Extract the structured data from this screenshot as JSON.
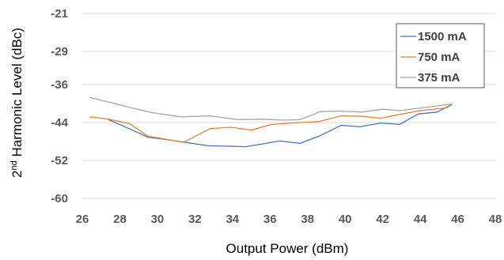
{
  "chart_data": {
    "type": "line",
    "title": "",
    "xlabel": "Output Power (dBm)",
    "ylabel_main": "2",
    "ylabel_sup": "nd",
    "ylabel_rest": " Harmonic Level (dBc)",
    "xlim": [
      26,
      48
    ],
    "ylim": [
      -60,
      -21
    ],
    "xticks": [
      26,
      28,
      30,
      32,
      34,
      36,
      38,
      40,
      42,
      44,
      46,
      48
    ],
    "yticks": [
      -21,
      -29,
      -36,
      -44,
      -52,
      -60
    ],
    "grid": "horizontal",
    "legend_position": "top-right",
    "series": [
      {
        "name": "1500 mA",
        "color": "#4472c4",
        "points": [
          [
            27.4,
            -43.4
          ],
          [
            28.5,
            -45.3
          ],
          [
            29.5,
            -47.1
          ],
          [
            30.5,
            -47.6
          ],
          [
            31.5,
            -48.2
          ],
          [
            32.7,
            -48.9
          ],
          [
            33.8,
            -49.0
          ],
          [
            34.7,
            -49.1
          ],
          [
            35.8,
            -48.4
          ],
          [
            36.5,
            -47.9
          ],
          [
            37.6,
            -48.4
          ],
          [
            38.6,
            -46.9
          ],
          [
            39.8,
            -44.6
          ],
          [
            40.8,
            -44.9
          ],
          [
            41.9,
            -44.1
          ],
          [
            42.9,
            -44.4
          ],
          [
            43.9,
            -42.2
          ],
          [
            44.9,
            -41.8
          ],
          [
            45.7,
            -40.2
          ]
        ]
      },
      {
        "name": "750 mA",
        "color": "#ed7d31",
        "points": [
          [
            26.4,
            -42.8
          ],
          [
            27.4,
            -43.3
          ],
          [
            28.5,
            -44.2
          ],
          [
            29.5,
            -46.9
          ],
          [
            30.6,
            -47.6
          ],
          [
            31.4,
            -48.2
          ],
          [
            32.8,
            -45.3
          ],
          [
            33.9,
            -45.0
          ],
          [
            35.0,
            -45.6
          ],
          [
            36.1,
            -44.4
          ],
          [
            37.2,
            -44.1
          ],
          [
            38.6,
            -43.8
          ],
          [
            39.8,
            -42.6
          ],
          [
            40.9,
            -42.7
          ],
          [
            41.9,
            -43.1
          ],
          [
            42.9,
            -42.3
          ],
          [
            44.0,
            -41.5
          ],
          [
            45.2,
            -41.0
          ],
          [
            45.5,
            -40.8
          ]
        ]
      },
      {
        "name": "375 mA",
        "color": "#a5a5a5",
        "points": [
          [
            26.4,
            -38.7
          ],
          [
            27.5,
            -39.8
          ],
          [
            28.6,
            -40.9
          ],
          [
            29.7,
            -41.9
          ],
          [
            31.2,
            -42.8
          ],
          [
            32.8,
            -42.6
          ],
          [
            34.3,
            -43.4
          ],
          [
            35.5,
            -43.3
          ],
          [
            36.7,
            -43.5
          ],
          [
            37.6,
            -43.4
          ],
          [
            38.7,
            -41.7
          ],
          [
            39.8,
            -41.6
          ],
          [
            40.9,
            -41.8
          ],
          [
            42.0,
            -41.2
          ],
          [
            42.9,
            -41.5
          ],
          [
            43.9,
            -41.0
          ],
          [
            44.9,
            -40.5
          ],
          [
            45.7,
            -40.1
          ]
        ]
      }
    ]
  }
}
